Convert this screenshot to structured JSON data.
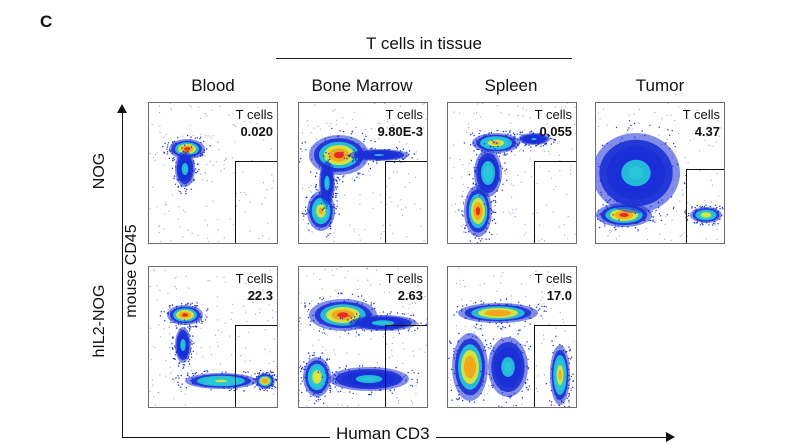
{
  "figure": {
    "panel_letter": "C",
    "group_label": "T cells in tissue",
    "columns": [
      "Blood",
      "Bone Marrow",
      "Spleen",
      "Tumor"
    ],
    "rows": [
      "NOG",
      "hIL2-NOG"
    ],
    "y_axis_label": "mouse CD45",
    "x_axis_label": "Human CD3"
  },
  "plots": {
    "nog_blood": {
      "gate_name": "T cells",
      "value": "0.020"
    },
    "nog_bm": {
      "gate_name": "T cells",
      "value": "9.80E-3"
    },
    "nog_spleen": {
      "gate_name": "T cells",
      "value": "0.055"
    },
    "nog_tumor": {
      "gate_name": "T cells",
      "value": "4.37"
    },
    "hil2_blood": {
      "gate_name": "T cells",
      "value": "22.3"
    },
    "hil2_bm": {
      "gate_name": "T cells",
      "value": "2.63"
    },
    "hil2_spleen": {
      "gate_name": "T cells",
      "value": "17.0"
    }
  },
  "colors": {
    "density_low": "#1a2fd6",
    "density_mid": "#28c8d8",
    "density_midhigh": "#e6e830",
    "density_high": "#e81e1e",
    "axis": "#111111",
    "frame": "#6d6d6d"
  }
}
